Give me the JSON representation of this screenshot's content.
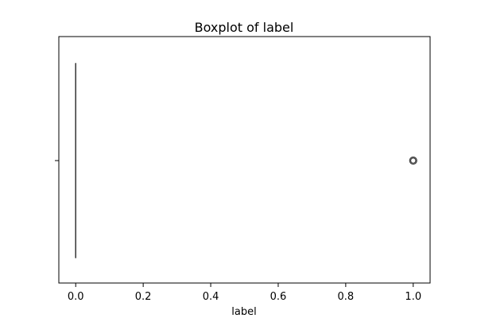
{
  "chart_data": {
    "type": "boxplot",
    "title": "Boxplot of label",
    "xlabel": "label",
    "ylabel": "",
    "xlim": [
      -0.05,
      1.05
    ],
    "xticks": [
      0.0,
      0.2,
      0.4,
      0.6,
      0.8,
      1.0
    ],
    "xtick_labels": [
      "0.0",
      "0.2",
      "0.4",
      "0.6",
      "0.8",
      "1.0"
    ],
    "grid": false,
    "box": {
      "whisker_low": 0.0,
      "q1": 0.0,
      "median": 0.0,
      "q3": 0.0,
      "whisker_high": 0.0,
      "outliers": [
        1.0
      ]
    },
    "colors": {
      "box_edge": "#3f3f3f",
      "outlier_edge": "#3f3f3f",
      "axis": "#000000",
      "text": "#000000"
    }
  }
}
